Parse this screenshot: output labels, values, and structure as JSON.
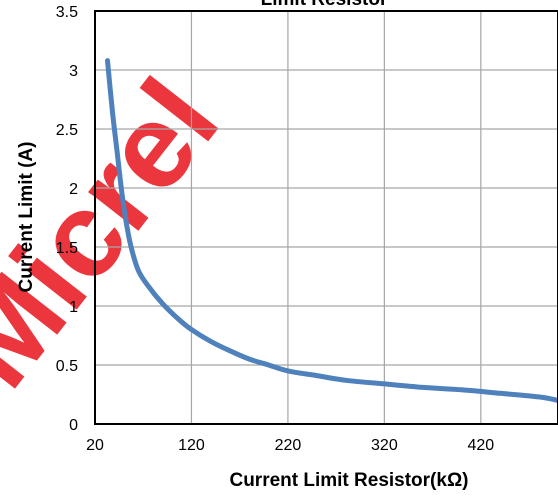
{
  "chart_data": {
    "type": "line",
    "title": "Limit Resistor",
    "xlabel": "Current Limit Resistor(kΩ)",
    "ylabel": "Current Limit (A)",
    "xlim": [
      20,
      500
    ],
    "ylim": [
      0,
      3.5
    ],
    "x_ticks": [
      "20",
      "120",
      "220",
      "320",
      "420"
    ],
    "y_ticks": [
      "0",
      "0.5",
      "1",
      "1.5",
      "2",
      "2.5",
      "3",
      "3.5"
    ],
    "grid": true,
    "legend": "none",
    "series": [
      {
        "color": "#4f81bd",
        "x": [
          33,
          38,
          43,
          48,
          53,
          58,
          65,
          75,
          90,
          105,
          120,
          140,
          160,
          180,
          200,
          220,
          250,
          280,
          320,
          360,
          400,
          440,
          480,
          500
        ],
        "y": [
          3.08,
          2.65,
          2.3,
          1.95,
          1.68,
          1.48,
          1.3,
          1.17,
          1.02,
          0.9,
          0.8,
          0.7,
          0.62,
          0.55,
          0.5,
          0.45,
          0.41,
          0.37,
          0.34,
          0.31,
          0.29,
          0.26,
          0.23,
          0.2
        ]
      }
    ]
  },
  "watermark": {
    "text": "Micrel",
    "color": "#e8141c"
  }
}
